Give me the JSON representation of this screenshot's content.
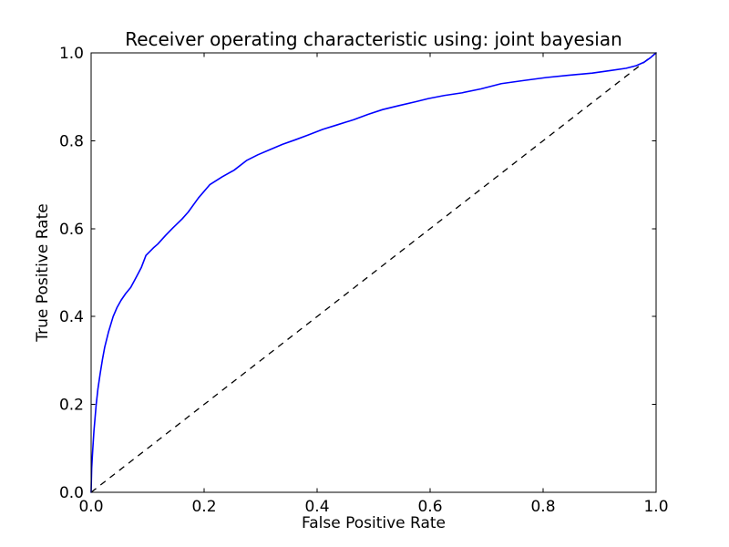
{
  "figure": {
    "background": "#ffffff"
  },
  "chart_data": {
    "type": "line",
    "title": "Receiver operating characteristic using: joint bayesian",
    "xlabel": "False Positive Rate",
    "ylabel": "True Positive Rate",
    "xlim": [
      0.0,
      1.0
    ],
    "ylim": [
      0.0,
      1.0
    ],
    "xtick_values": [
      0.0,
      0.2,
      0.4,
      0.6,
      0.8,
      1.0
    ],
    "xtick_labels": [
      "0.0",
      "0.2",
      "0.4",
      "0.6",
      "0.8",
      "1.0"
    ],
    "ytick_values": [
      0.0,
      0.2,
      0.4,
      0.6,
      0.8,
      1.0
    ],
    "ytick_labels": [
      "0.0",
      "0.2",
      "0.4",
      "0.6",
      "0.8",
      "1.0"
    ],
    "grid": false,
    "legend": "none",
    "axes_color": "#000000",
    "series": [
      {
        "name": "roc-curve",
        "color": "#0000ff",
        "style": "solid",
        "linewidth": 1.6,
        "points": [
          [
            0.0,
            0.0
          ],
          [
            0.0005,
            0.03
          ],
          [
            0.001,
            0.055
          ],
          [
            0.002,
            0.078
          ],
          [
            0.003,
            0.1
          ],
          [
            0.005,
            0.14
          ],
          [
            0.007,
            0.17
          ],
          [
            0.009,
            0.2
          ],
          [
            0.012,
            0.235
          ],
          [
            0.016,
            0.27
          ],
          [
            0.02,
            0.302
          ],
          [
            0.024,
            0.33
          ],
          [
            0.031,
            0.366
          ],
          [
            0.039,
            0.4
          ],
          [
            0.046,
            0.421
          ],
          [
            0.053,
            0.437
          ],
          [
            0.061,
            0.452
          ],
          [
            0.07,
            0.466
          ],
          [
            0.08,
            0.49
          ],
          [
            0.089,
            0.512
          ],
          [
            0.097,
            0.539
          ],
          [
            0.11,
            0.556
          ],
          [
            0.118,
            0.565
          ],
          [
            0.132,
            0.585
          ],
          [
            0.145,
            0.602
          ],
          [
            0.161,
            0.622
          ],
          [
            0.172,
            0.638
          ],
          [
            0.19,
            0.67
          ],
          [
            0.21,
            0.7
          ],
          [
            0.232,
            0.718
          ],
          [
            0.253,
            0.733
          ],
          [
            0.275,
            0.755
          ],
          [
            0.295,
            0.768
          ],
          [
            0.317,
            0.78
          ],
          [
            0.339,
            0.792
          ],
          [
            0.361,
            0.802
          ],
          [
            0.384,
            0.813
          ],
          [
            0.41,
            0.826
          ],
          [
            0.435,
            0.836
          ],
          [
            0.465,
            0.848
          ],
          [
            0.49,
            0.86
          ],
          [
            0.516,
            0.871
          ],
          [
            0.545,
            0.88
          ],
          [
            0.575,
            0.889
          ],
          [
            0.597,
            0.896
          ],
          [
            0.625,
            0.903
          ],
          [
            0.656,
            0.909
          ],
          [
            0.69,
            0.918
          ],
          [
            0.726,
            0.93
          ],
          [
            0.765,
            0.937
          ],
          [
            0.806,
            0.944
          ],
          [
            0.845,
            0.949
          ],
          [
            0.887,
            0.954
          ],
          [
            0.92,
            0.96
          ],
          [
            0.947,
            0.965
          ],
          [
            0.965,
            0.971
          ],
          [
            0.979,
            0.979
          ],
          [
            0.99,
            0.989
          ],
          [
            1.0,
            1.0
          ]
        ]
      },
      {
        "name": "chance-diagonal",
        "color": "#000000",
        "style": "dashed",
        "linewidth": 1.3,
        "points": [
          [
            0.0,
            0.0
          ],
          [
            1.0,
            1.0
          ]
        ]
      }
    ]
  }
}
